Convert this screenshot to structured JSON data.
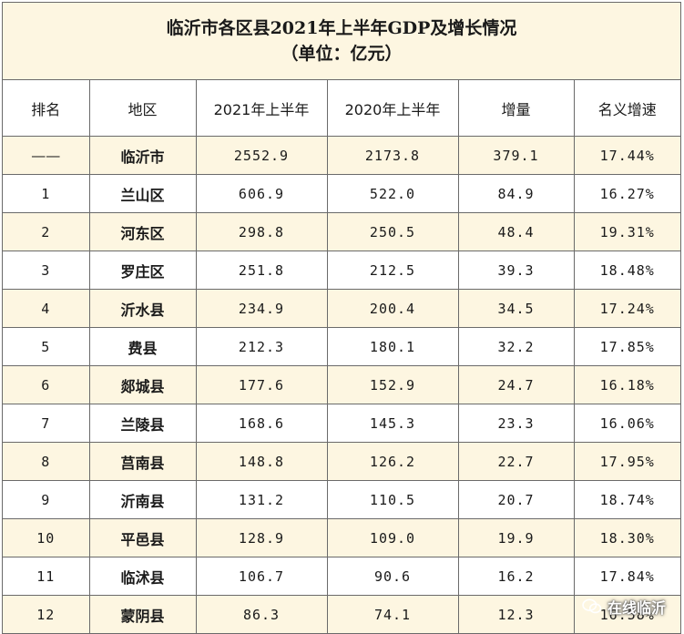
{
  "title": {
    "line1": "临沂市各区县2021年上半年GDP及增长情况",
    "line2": "（单位：亿元）"
  },
  "headers": [
    "排名",
    "地区",
    "2021年上半年",
    "2020年上半年",
    "增量",
    "名义增速"
  ],
  "rows": [
    {
      "rank": "——",
      "region": "临沂市",
      "h2021": "2552.9",
      "h2020": "2173.8",
      "increase": "379.1",
      "growth": "17.44%"
    },
    {
      "rank": "1",
      "region": "兰山区",
      "h2021": "606.9",
      "h2020": "522.0",
      "increase": "84.9",
      "growth": "16.27%"
    },
    {
      "rank": "2",
      "region": "河东区",
      "h2021": "298.8",
      "h2020": "250.5",
      "increase": "48.4",
      "growth": "19.31%"
    },
    {
      "rank": "3",
      "region": "罗庄区",
      "h2021": "251.8",
      "h2020": "212.5",
      "increase": "39.3",
      "growth": "18.48%"
    },
    {
      "rank": "4",
      "region": "沂水县",
      "h2021": "234.9",
      "h2020": "200.4",
      "increase": "34.5",
      "growth": "17.24%"
    },
    {
      "rank": "5",
      "region": "费县",
      "h2021": "212.3",
      "h2020": "180.1",
      "increase": "32.2",
      "growth": "17.85%"
    },
    {
      "rank": "6",
      "region": "郯城县",
      "h2021": "177.6",
      "h2020": "152.9",
      "increase": "24.7",
      "growth": "16.18%"
    },
    {
      "rank": "7",
      "region": "兰陵县",
      "h2021": "168.6",
      "h2020": "145.3",
      "increase": "23.3",
      "growth": "16.06%"
    },
    {
      "rank": "8",
      "region": "莒南县",
      "h2021": "148.8",
      "h2020": "126.2",
      "increase": "22.7",
      "growth": "17.95%"
    },
    {
      "rank": "9",
      "region": "沂南县",
      "h2021": "131.2",
      "h2020": "110.5",
      "increase": "20.7",
      "growth": "18.74%"
    },
    {
      "rank": "10",
      "region": "平邑县",
      "h2021": "128.9",
      "h2020": "109.0",
      "increase": "19.9",
      "growth": "18.30%"
    },
    {
      "rank": "11",
      "region": "临沭县",
      "h2021": "106.7",
      "h2020": "90.6",
      "increase": "16.2",
      "growth": "17.84%"
    },
    {
      "rank": "12",
      "region": "蒙阴县",
      "h2021": "86.3",
      "h2020": "74.1",
      "increase": "12.3",
      "growth": "16.58%"
    }
  ],
  "watermark": {
    "text": "在线临沂",
    "icon": "wechat-icon"
  },
  "colors": {
    "alt_row": "#fdf6e1",
    "border": "#6a6a6a"
  }
}
